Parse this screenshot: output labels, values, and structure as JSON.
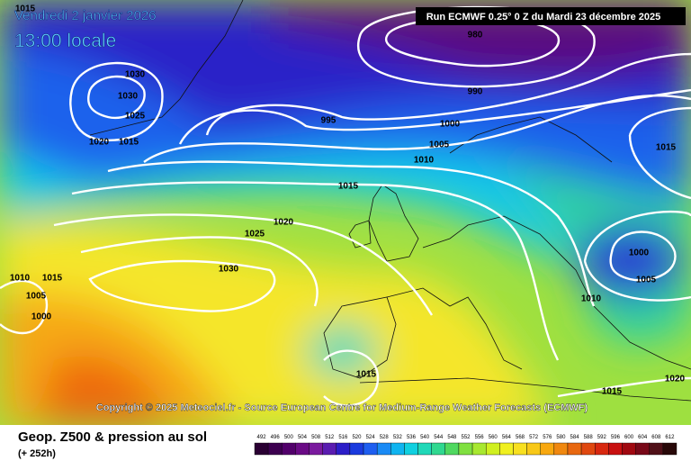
{
  "header": {
    "date": "Vendredi 2 janvier 2026",
    "time": "13:00 locale",
    "run": "Run ECMWF 0.25° 0 Z du Mardi 23 décembre 2025"
  },
  "map": {
    "isobar_labels": [
      980,
      990,
      995,
      1000,
      1005,
      1010,
      1015,
      1020,
      1025,
      1030,
      1015,
      1030,
      1030,
      1025,
      1020,
      1015,
      1015,
      1000,
      1005,
      1010,
      1015,
      1015,
      1020,
      1000,
      1005,
      1010,
      1015
    ],
    "copyright": "Copyright © 2025 Meteociel.fr - Source European Centre for Medium-Range Weather Forecasts (ECMWF)"
  },
  "footer": {
    "title": "Geop. Z500 & pression au sol",
    "lead": "(+ 252h)",
    "scale": {
      "ticks": [
        492,
        496,
        500,
        504,
        508,
        512,
        516,
        520,
        524,
        528,
        532,
        536,
        540,
        544,
        548,
        552,
        556,
        560,
        564,
        568,
        572,
        576,
        580,
        584,
        588,
        592,
        596,
        600,
        604,
        608,
        612
      ],
      "colors": [
        "#2a0033",
        "#3d0050",
        "#52006b",
        "#6a0a85",
        "#7a1a9e",
        "#5a1cb0",
        "#2c1ec8",
        "#1a3ade",
        "#1e5ef0",
        "#1a8af5",
        "#10b4f0",
        "#10d0e0",
        "#20d8b8",
        "#30d890",
        "#50d860",
        "#80e040",
        "#a8e830",
        "#d0f020",
        "#f0f020",
        "#f8e020",
        "#f8c818",
        "#f8a810",
        "#f08810",
        "#e86810",
        "#e04810",
        "#d82810",
        "#c81010",
        "#a00810",
        "#780818",
        "#501018",
        "#280808"
      ]
    }
  }
}
